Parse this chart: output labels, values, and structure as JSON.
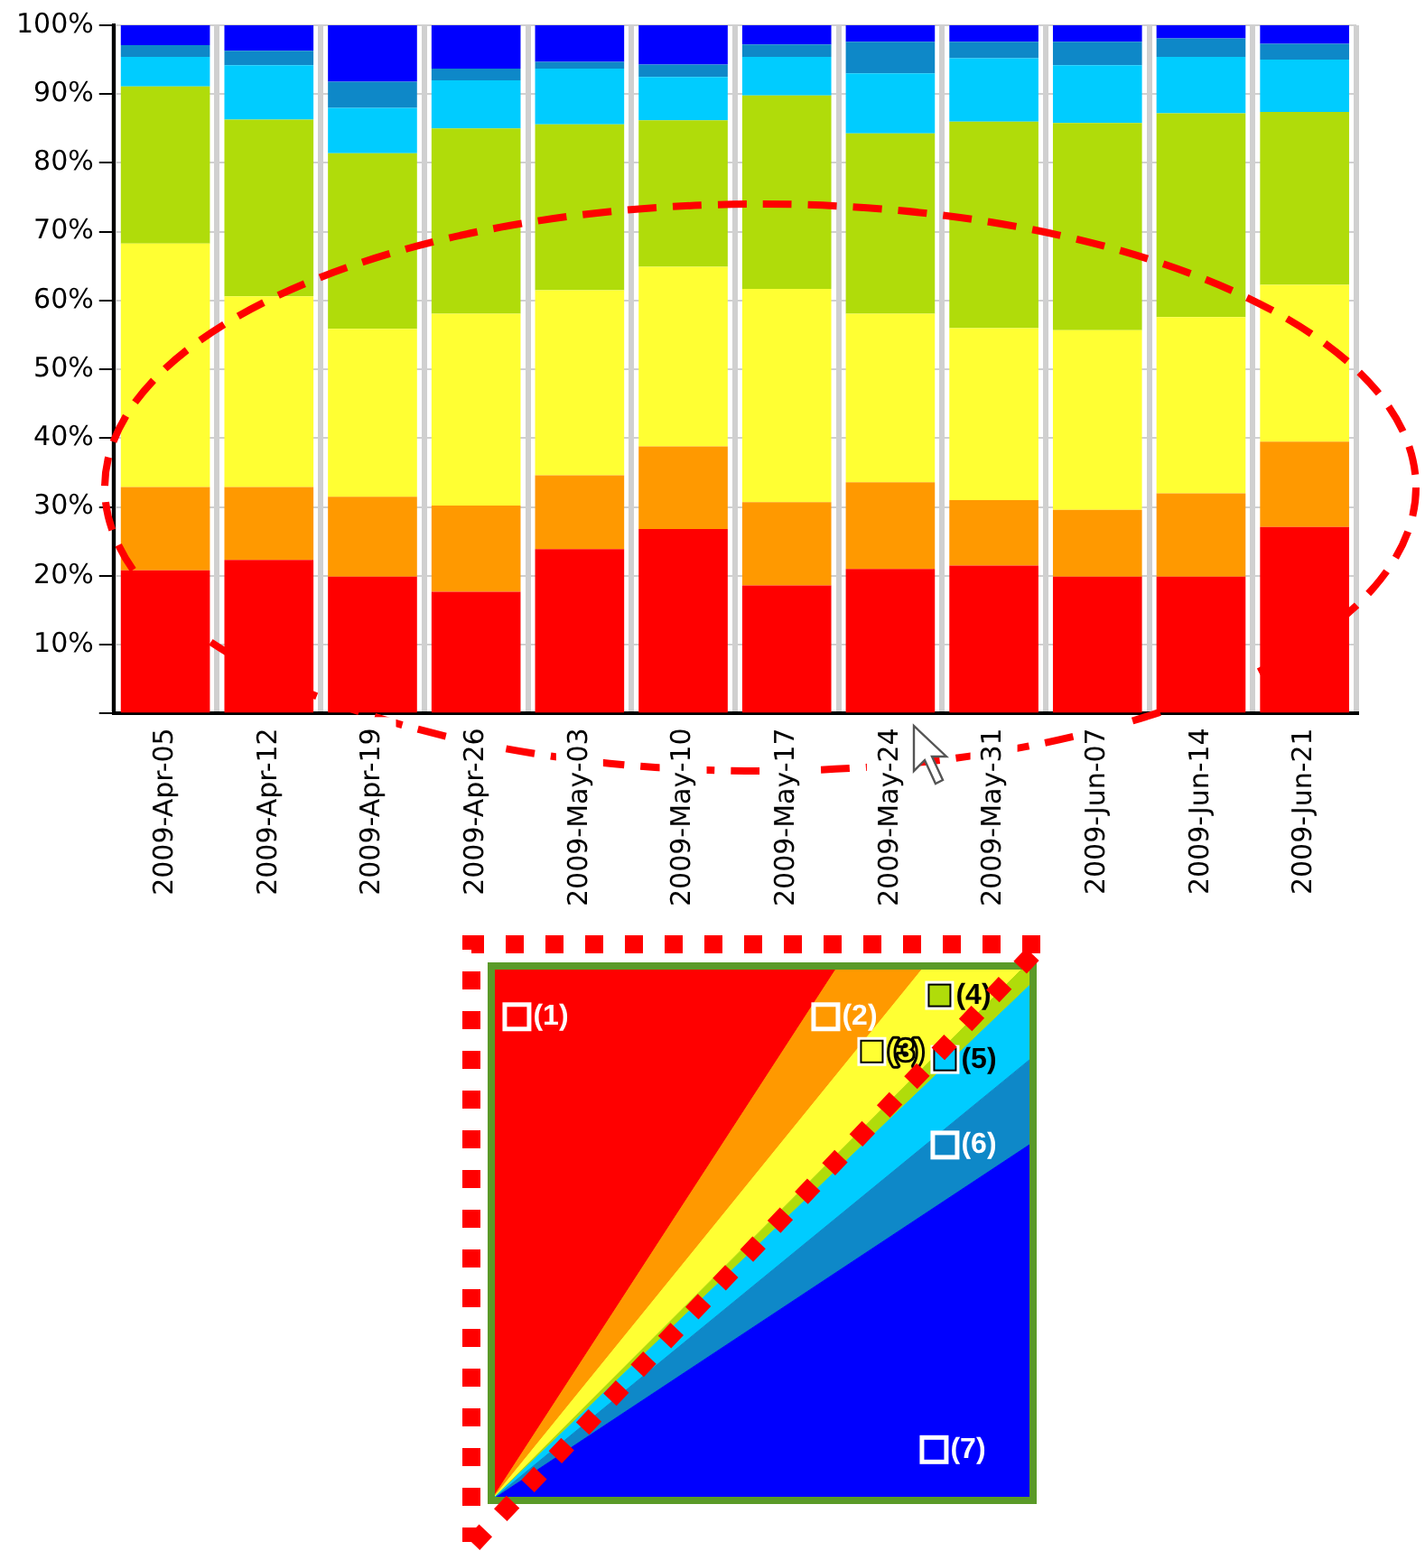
{
  "chart_data": {
    "type": "bar",
    "stacked": true,
    "categories": [
      "2009-Apr-05",
      "2009-Apr-12",
      "2009-Apr-19",
      "2009-Apr-26",
      "2009-May-03",
      "2009-May-10",
      "2009-May-17",
      "2009-May-24",
      "2009-May-31",
      "2009-Jun-07",
      "2009-Jun-14",
      "2009-Jun-21"
    ],
    "series": [
      {
        "name": "(1)",
        "color": "#ff0000",
        "values": [
          20.8,
          22.3,
          19.9,
          17.7,
          23.9,
          26.8,
          18.6,
          21.0,
          21.5,
          19.9,
          19.9,
          27.1
        ]
      },
      {
        "name": "(2)",
        "color": "#ff9900",
        "values": [
          12.1,
          10.6,
          11.6,
          12.5,
          10.7,
          12.0,
          12.1,
          12.6,
          9.5,
          9.7,
          12.1,
          12.4
        ]
      },
      {
        "name": "(3)",
        "color": "#ffff33",
        "values": [
          35.4,
          27.7,
          24.4,
          27.9,
          26.9,
          26.1,
          31.0,
          24.5,
          25.0,
          26.1,
          25.6,
          22.8
        ]
      },
      {
        "name": "(4)",
        "color": "#b0dc0a",
        "values": [
          22.8,
          25.7,
          25.5,
          26.9,
          24.1,
          21.3,
          28.1,
          26.2,
          30.0,
          30.1,
          29.6,
          25.1
        ]
      },
      {
        "name": "(5)",
        "color": "#00ccff",
        "values": [
          4.3,
          7.9,
          6.6,
          7.0,
          8.1,
          6.3,
          5.6,
          8.7,
          9.2,
          8.4,
          8.2,
          7.6
        ]
      },
      {
        "name": "(6)",
        "color": "#0e88c8",
        "values": [
          1.7,
          2.1,
          3.8,
          1.7,
          1.0,
          1.8,
          1.8,
          4.6,
          2.4,
          3.4,
          2.7,
          2.3
        ]
      },
      {
        "name": "(7)",
        "color": "#0000ff",
        "values": [
          2.9,
          3.7,
          8.2,
          6.3,
          5.3,
          5.7,
          2.8,
          2.4,
          2.4,
          2.4,
          1.9,
          2.7
        ]
      }
    ],
    "ylim": [
      0,
      100
    ],
    "yticks": [
      {
        "value": 0,
        "label": null
      },
      {
        "value": 10,
        "label": "10%"
      },
      {
        "value": 20,
        "label": "20%"
      },
      {
        "value": 30,
        "label": "30%"
      },
      {
        "value": 40,
        "label": "40%"
      },
      {
        "value": 50,
        "label": "50%"
      },
      {
        "value": 60,
        "label": "60%"
      },
      {
        "value": 70,
        "label": "70%"
      },
      {
        "value": 80,
        "label": "80%"
      },
      {
        "value": 90,
        "label": "90%"
      },
      {
        "value": 100,
        "label": "100%"
      }
    ],
    "grid": true,
    "legend": "bottom"
  }
}
